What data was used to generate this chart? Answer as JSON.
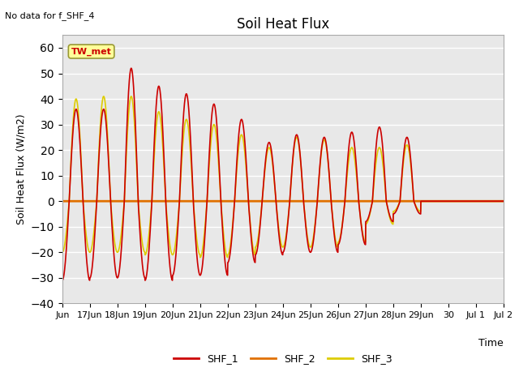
{
  "title": "Soil Heat Flux",
  "ylabel": "Soil Heat Flux (W/m2)",
  "xlabel": "Time",
  "ylim": [
    -40,
    65
  ],
  "yticks": [
    -40,
    -30,
    -20,
    -10,
    0,
    10,
    20,
    30,
    40,
    50,
    60
  ],
  "annotation": "No data for f_SHF_4",
  "legend_box_label": "TW_met",
  "legend_entries": [
    "SHF_1",
    "SHF_2",
    "SHF_3"
  ],
  "line_colors": [
    "#cc0000",
    "#e07000",
    "#ddcc00"
  ],
  "fig_facecolor": "#ffffff",
  "plot_facecolor": "#e8e8e8",
  "x_tick_labels": [
    "Jun",
    "17Jun",
    "18Jun",
    "19Jun",
    "20Jun",
    "21Jun",
    "22Jun",
    "23Jun",
    "24Jun",
    "25Jun",
    "26Jun",
    "27Jun",
    "28Jun",
    "29Jun",
    "30",
    "Jul 1",
    "Jul 2"
  ],
  "shf1_peaks": [
    36,
    -31,
    36,
    -30,
    52,
    -30,
    45,
    -31,
    42,
    -29,
    38,
    -29,
    32,
    -24,
    23,
    -21,
    26,
    -20,
    25,
    -20,
    27,
    -17,
    29,
    -8,
    25,
    -5
  ],
  "shf3_peaks": [
    40,
    -20,
    41,
    -20,
    41,
    -20,
    35,
    -21,
    32,
    -21,
    30,
    -22,
    26,
    -21,
    21,
    -18,
    25,
    -18,
    24,
    -18,
    21,
    -16,
    21,
    -9,
    22,
    -4
  ]
}
